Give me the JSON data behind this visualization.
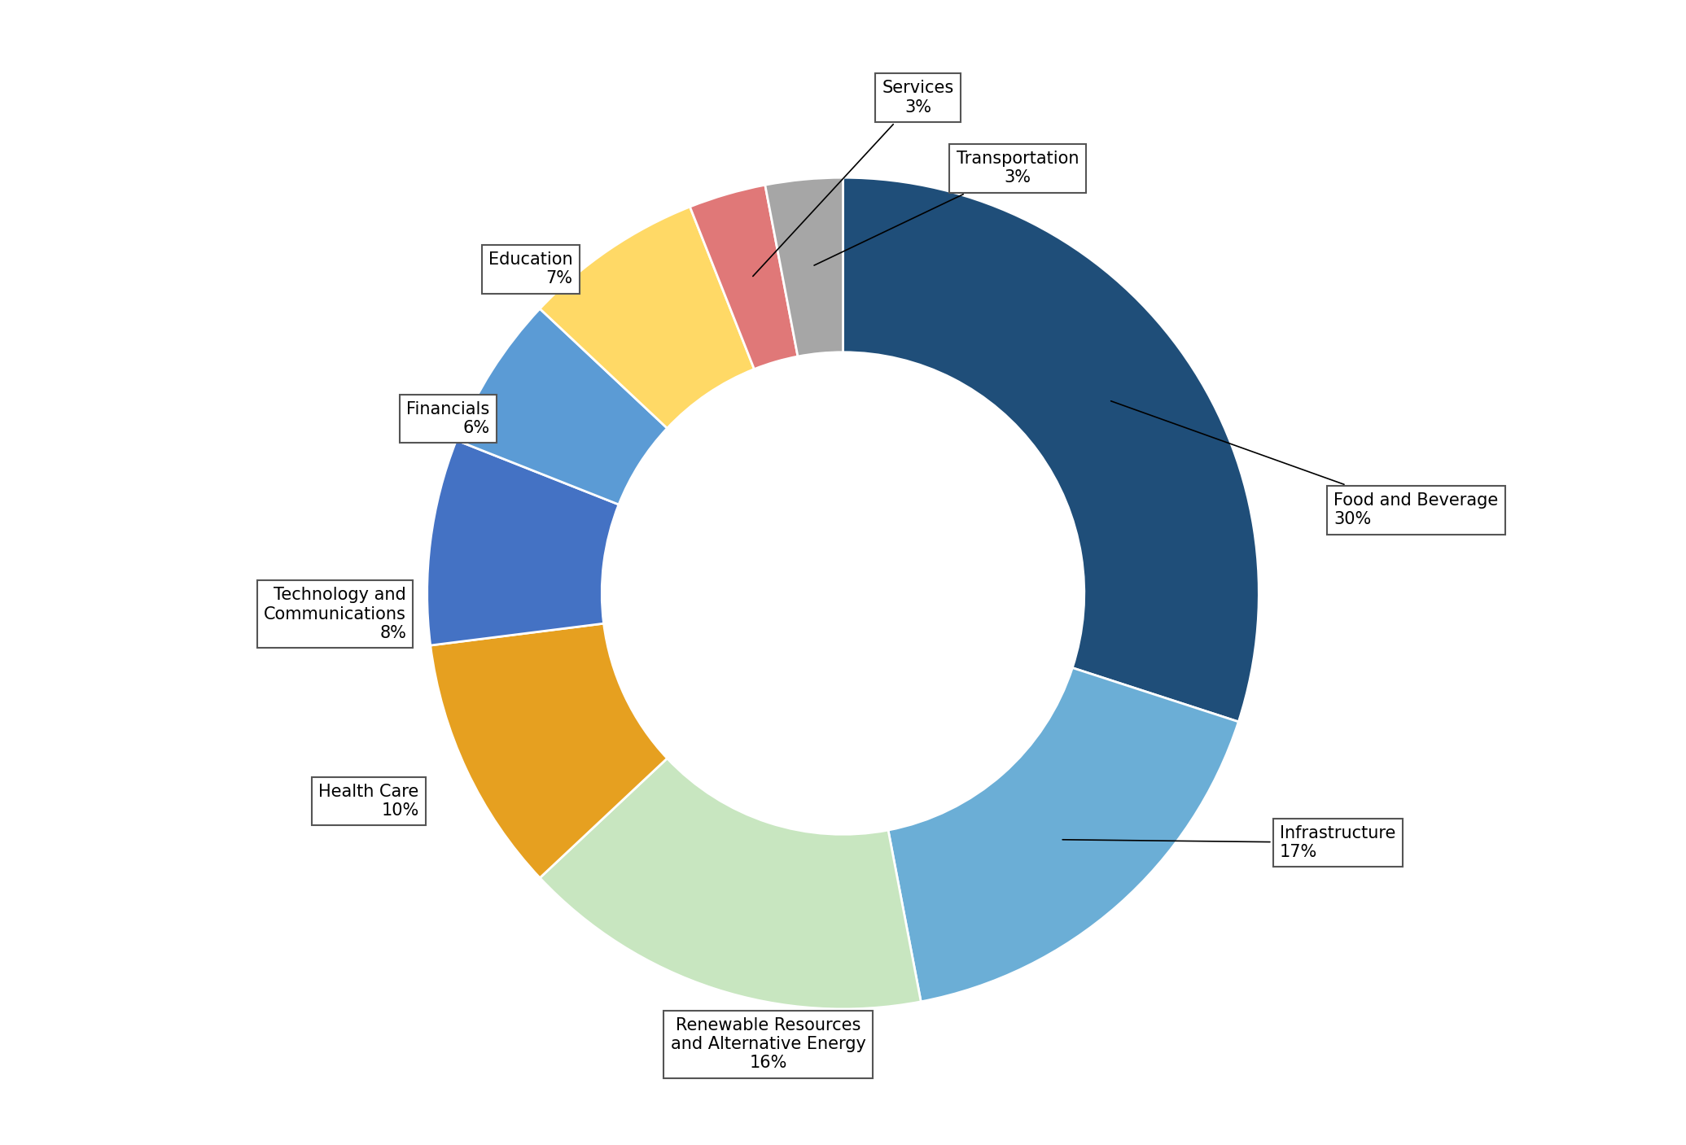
{
  "sectors": [
    "Food and Beverage",
    "Infrastructure",
    "Renewable Resources\nand Alternative Energy",
    "Health Care",
    "Technology and\nCommunications",
    "Financials",
    "Education",
    "Services",
    "Transportation"
  ],
  "label_text": [
    "Food and Beverage\n30%",
    "Infrastructure\n17%",
    "Renewable Resources\nand Alternative Energy\n16%",
    "Health Care\n10%",
    "Technology and\nCommunications\n8%",
    "Financials\n6%",
    "Education\n7%",
    "Services\n3%",
    "Transportation\n3%"
  ],
  "percentages": [
    30,
    17,
    16,
    10,
    8,
    6,
    7,
    3,
    3
  ],
  "colors": [
    "#1f4e79",
    "#6baed6",
    "#c8e6c0",
    "#e6a020",
    "#4472c4",
    "#5b9bd5",
    "#ffd966",
    "#e07878",
    "#a6a6a6"
  ],
  "background_color": "#ffffff",
  "wedge_edge_color": "#ffffff",
  "label_fontsize": 15,
  "figsize": [
    20.71,
    14.07
  ],
  "dpi": 100
}
